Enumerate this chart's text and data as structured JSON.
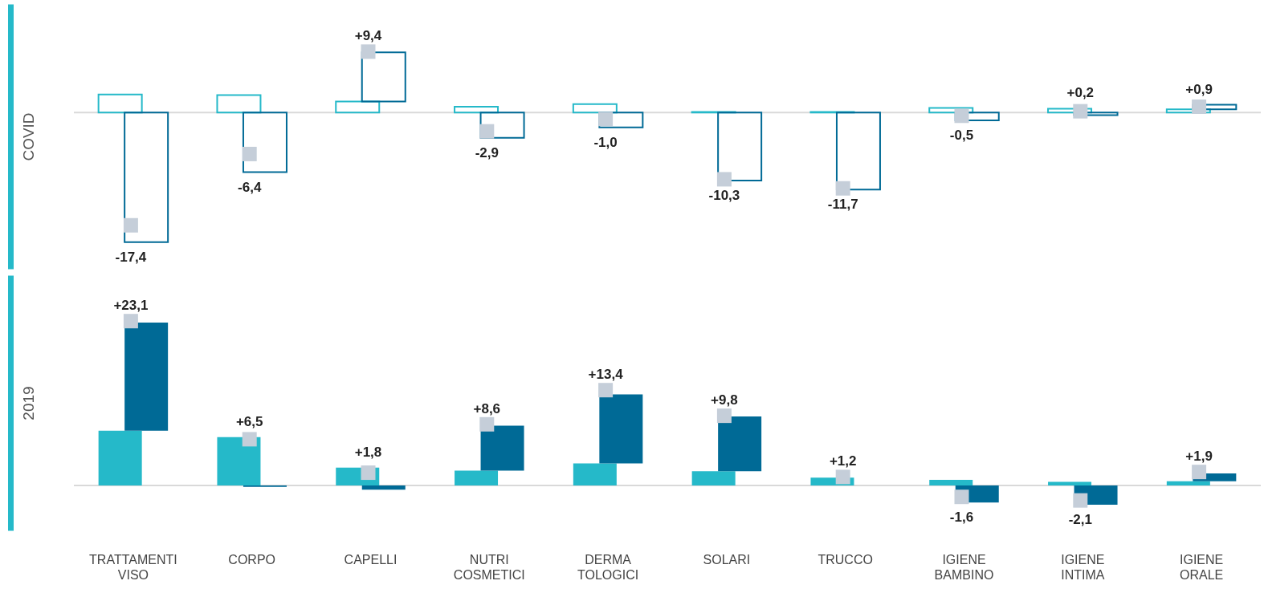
{
  "chart_data": [
    {
      "type": "bar",
      "stacked": true,
      "ylabel": "COVID",
      "tick_labels": false,
      "categories": [
        "TRATTAMENTI\nVISO",
        "CORPO",
        "CAPELLI",
        "NUTRI\nCOSMETICI",
        "DERMA\nTOLOGICI",
        "SOLARI",
        "TRUCCO",
        "IGIENE\nBAMBINO",
        "IGIENE\nINTIMA",
        "IGIENE\nORALE"
      ],
      "series": [
        {
          "color": "#25b9c9",
          "values": [
            2.8,
            2.7,
            1.7,
            0.9,
            1.3,
            0.1,
            0.1,
            0.7,
            0.6,
            0.5
          ]
        },
        {
          "color": "#006a96",
          "values": [
            -20.0,
            -9.2,
            7.6,
            -3.9,
            -2.3,
            -10.5,
            -11.9,
            -1.2,
            -0.4,
            0.7
          ]
        },
        {
          "type": "scatter",
          "marker": "square",
          "color": "#c5ced9",
          "x": [
            "TRATTAMENTI\nVISO",
            "CORPO",
            "CAPELLI",
            "NUTRI\nCOSMETICI",
            "DERMA\nTOLOGICI",
            "SOLARI",
            "TRUCCO",
            "IGIENE\nBAMBINO",
            "IGIENE\nINTIMA",
            "IGIENE\nORALE"
          ],
          "values": [
            -17.4,
            -6.4,
            9.4,
            -2.9,
            -1.0,
            -10.3,
            -11.7,
            -0.5,
            0.2,
            0.9
          ],
          "value_labels": [
            "-17,4",
            "-6,4",
            "+9,4",
            "-2,9",
            "-1,0",
            "-10,3",
            "-11,7",
            "-0,5",
            "+0,2",
            "+0,9"
          ]
        }
      ],
      "ref_lines": [
        {
          "axis": "y",
          "value": 0,
          "color": "#d9d9d9"
        }
      ]
    },
    {
      "type": "bar",
      "stacked": true,
      "ylabel": "2019",
      "tick_labels": "x",
      "categories": [
        "TRATTAMENTI\nVISO",
        "CORPO",
        "CAPELLI",
        "NUTRI\nCOSMETICI",
        "DERMA\nTOLOGICI",
        "SOLARI",
        "TRUCCO",
        "IGIENE\nBAMBINO",
        "IGIENE\nINTIMA",
        "IGIENE\nORALE"
      ],
      "series": [
        {
          "color": "#25b9c9",
          "values": [
            7.7,
            6.8,
            2.5,
            2.1,
            3.1,
            2.0,
            1.1,
            0.8,
            0.5,
            0.6
          ]
        },
        {
          "color": "#006a96",
          "values": [
            15.2,
            -0.2,
            -0.6,
            6.3,
            9.7,
            7.7,
            null,
            -2.4,
            -2.7,
            1.1
          ]
        },
        {
          "type": "scatter",
          "marker": "square",
          "color": "#c5ced9",
          "x": [
            "TRATTAMENTI\nVISO",
            "CORPO",
            "CAPELLI",
            "NUTRI\nCOSMETICI",
            "DERMA\nTOLOGICI",
            "SOLARI",
            "TRUCCO",
            "IGIENE\nBAMBINO",
            "IGIENE\nINTIMA",
            "IGIENE\nORALE"
          ],
          "values": [
            23.1,
            6.5,
            1.8,
            8.6,
            13.4,
            9.8,
            1.2,
            -1.6,
            -2.1,
            1.9
          ],
          "value_labels": [
            "+23,1",
            "+6,5",
            "+1,8",
            "+8,6",
            "+13,4",
            "+9,8",
            "+1,2",
            "-1,6",
            "-2,1",
            "+1,9"
          ]
        }
      ],
      "ref_lines": [
        {
          "axis": "y",
          "value": 0,
          "color": "#d9d9d9"
        }
      ]
    }
  ]
}
